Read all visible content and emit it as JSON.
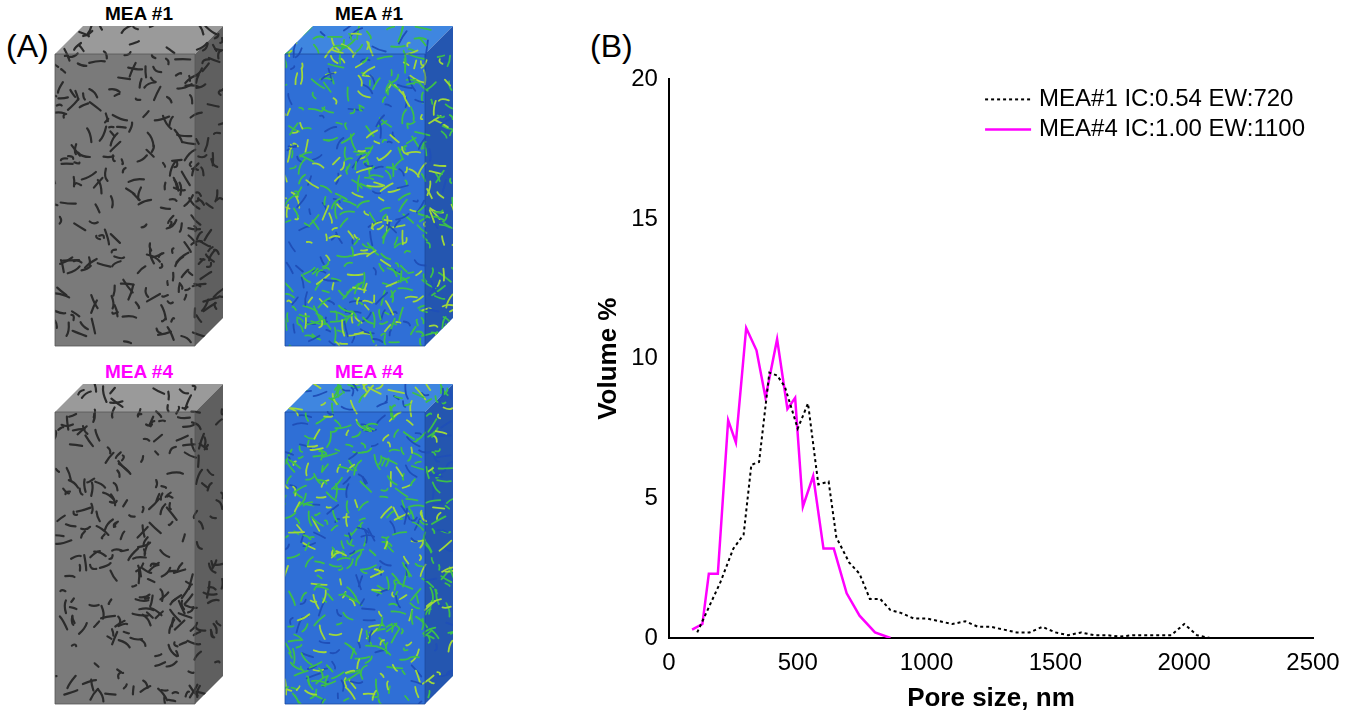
{
  "panel_a": {
    "label": "(A)",
    "renderings": [
      {
        "title": "MEA #1",
        "title_color": "#000000",
        "style": "gray"
      },
      {
        "title": "MEA #1",
        "title_color": "#000000",
        "style": "colored"
      },
      {
        "title": "MEA #4",
        "title_color": "#ff00ff",
        "style": "gray"
      },
      {
        "title": "MEA #4",
        "title_color": "#ff00ff",
        "style": "colored"
      }
    ]
  },
  "panel_b": {
    "label": "(B)"
  },
  "chart_data": {
    "type": "line",
    "x_label": "Pore size, nm",
    "y_label": "Volume %",
    "xlim": [
      0,
      2500
    ],
    "xticks": [
      0,
      500,
      1000,
      1500,
      2000,
      2500
    ],
    "ylim": [
      0,
      20
    ],
    "yticks": [
      0,
      5,
      10,
      15,
      20
    ],
    "grid": false,
    "legend": "upper right",
    "series": [
      {
        "name": "MEA#1 IC:0.54 EW:720",
        "color": "#000000",
        "line_style": "dotted",
        "x": [
          110,
          150,
          200,
          250,
          290,
          320,
          350,
          390,
          420,
          450,
          500,
          540,
          580,
          620,
          650,
          700,
          740,
          780,
          820,
          860,
          900,
          950,
          1000,
          1050,
          1100,
          1150,
          1200,
          1250,
          1300,
          1350,
          1400,
          1450,
          1500,
          1550,
          1600,
          1650,
          1700,
          1750,
          1800,
          1850,
          1900,
          1950,
          2000,
          2050,
          2100
        ],
        "values": [
          0.2,
          1.0,
          2.0,
          3.2,
          3.7,
          6.2,
          6.3,
          9.5,
          9.4,
          9.0,
          7.5,
          8.4,
          5.5,
          5.6,
          3.6,
          2.7,
          2.3,
          1.4,
          1.4,
          1.0,
          0.9,
          0.7,
          0.7,
          0.6,
          0.5,
          0.6,
          0.4,
          0.4,
          0.3,
          0.2,
          0.2,
          0.4,
          0.2,
          0.1,
          0.2,
          0.1,
          0.1,
          0.05,
          0.1,
          0.1,
          0.1,
          0.1,
          0.5,
          0.1,
          0
        ]
      },
      {
        "name": "MEA#4 IC:1.00 EW:1100",
        "color": "#ff00ff",
        "line_style": "solid",
        "x": [
          90,
          130,
          155,
          190,
          230,
          260,
          300,
          340,
          375,
          420,
          460,
          490,
          520,
          560,
          600,
          640,
          690,
          740,
          800,
          860
        ],
        "values": [
          0.3,
          0.5,
          2.3,
          2.3,
          7.8,
          7.0,
          11.1,
          10.3,
          8.6,
          10.7,
          8.2,
          8.6,
          4.7,
          5.8,
          3.2,
          3.2,
          1.6,
          0.8,
          0.2,
          0
        ]
      }
    ]
  }
}
